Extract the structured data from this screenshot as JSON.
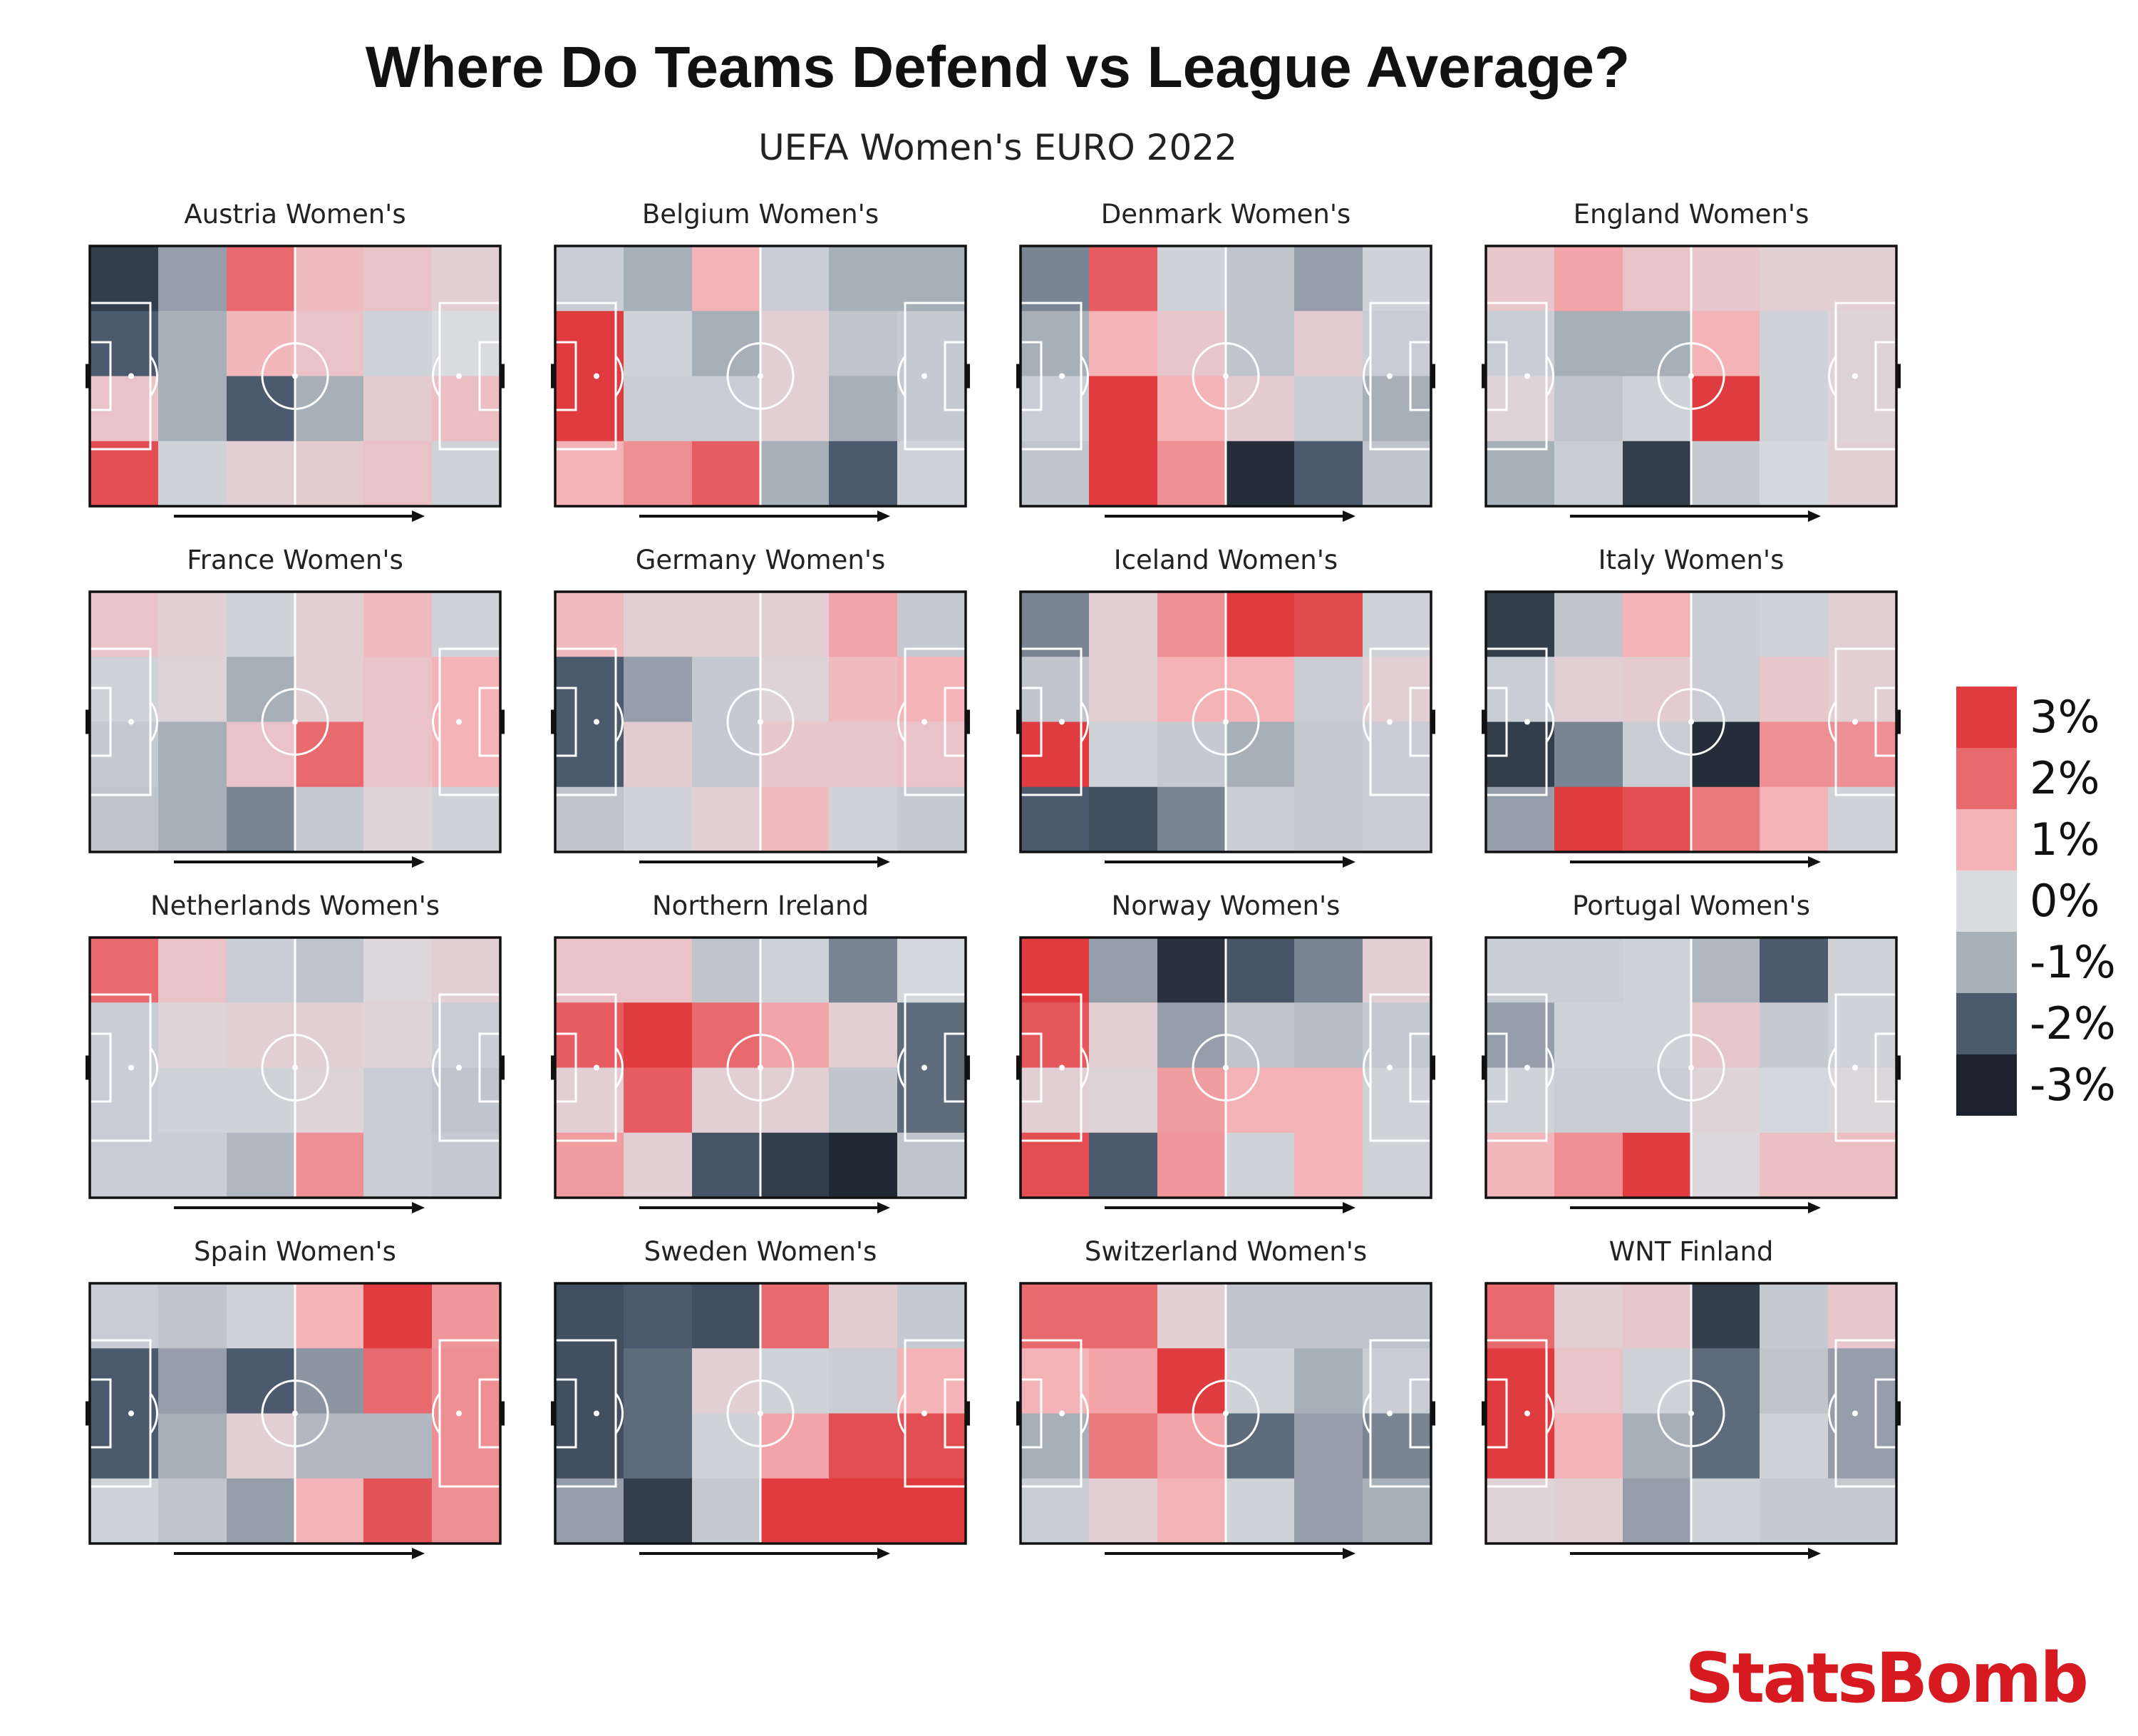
{
  "title": "Where Do Teams Defend vs League Average?",
  "subtitle": "UEFA Women's EURO 2022",
  "brand": "StatsBomb",
  "colors": {
    "scale": [
      "#1b222d",
      "#4b5a6c",
      "#a7afb9",
      "#d9dbdf",
      "#f4b3b7",
      "#e86a6f",
      "#e03c40"
    ],
    "line": "#ffffff",
    "border": "#111111"
  },
  "legend": {
    "labels": [
      "3%",
      "2%",
      "1%",
      "0%",
      "-1%",
      "-2%",
      "-3%"
    ],
    "colors": [
      "#e03c40",
      "#e86a6f",
      "#f4b3b7",
      "#d9dbdf",
      "#a7afb9",
      "#4b5a6c",
      "#1b222d"
    ]
  },
  "chart_data": {
    "type": "heatmap",
    "description_units": "difference vs league average share of defensive actions (%)",
    "grid": {
      "columns": 6,
      "rows": 4
    },
    "range": [
      -3,
      3
    ],
    "attack_direction": "left-to-right",
    "teams": [
      {
        "name": "Austria Women's",
        "values": [
          [
            -2.5,
            -1.2,
            2.0,
            0.8,
            0.6,
            0.3
          ],
          [
            -2.0,
            -1.0,
            0.9,
            0.6,
            -0.2,
            0.0
          ],
          [
            0.6,
            -1.0,
            -2.0,
            -1.0,
            0.4,
            0.7
          ],
          [
            2.6,
            -0.2,
            0.3,
            0.4,
            0.6,
            -0.2
          ]
        ]
      },
      {
        "name": "Belgium Women's",
        "values": [
          [
            -0.3,
            -1.0,
            1.0,
            -0.3,
            -1.0,
            -1.0
          ],
          [
            3.0,
            -0.2,
            -1.0,
            0.3,
            -0.5,
            -0.4
          ],
          [
            3.0,
            -0.3,
            -0.3,
            0.3,
            -1.0,
            -0.4
          ],
          [
            1.0,
            1.5,
            2.3,
            -1.0,
            -2.0,
            -0.2
          ]
        ]
      },
      {
        "name": "Denmark Women's",
        "values": [
          [
            -1.5,
            2.3,
            -0.2,
            -0.5,
            -1.2,
            -0.2
          ],
          [
            -1.0,
            1.0,
            0.5,
            -0.5,
            0.4,
            -0.3
          ],
          [
            -0.3,
            3.0,
            1.0,
            0.4,
            -0.3,
            -1.0
          ],
          [
            -0.5,
            3.0,
            1.5,
            -2.8,
            -2.0,
            -0.5
          ]
        ]
      },
      {
        "name": "England Women's",
        "values": [
          [
            0.5,
            1.2,
            0.6,
            0.5,
            0.3,
            0.3
          ],
          [
            -0.3,
            -1.0,
            -1.0,
            1.0,
            -0.2,
            0.2
          ],
          [
            0.2,
            -0.5,
            -0.2,
            3.0,
            -0.2,
            0.2
          ],
          [
            -1.0,
            -0.3,
            -2.5,
            -0.4,
            -0.1,
            0.3
          ]
        ]
      },
      {
        "name": "France Women's",
        "values": [
          [
            0.6,
            0.3,
            -0.2,
            0.3,
            0.8,
            -0.2
          ],
          [
            -0.2,
            0.2,
            -1.0,
            0.3,
            0.6,
            1.0
          ],
          [
            -0.4,
            -1.0,
            0.6,
            2.0,
            0.6,
            1.0
          ],
          [
            -0.5,
            -1.0,
            -1.5,
            -0.4,
            0.2,
            -0.2
          ]
        ]
      },
      {
        "name": "Germany Women's",
        "values": [
          [
            0.8,
            0.3,
            0.3,
            0.3,
            1.2,
            -0.4
          ],
          [
            -2.0,
            -1.2,
            -0.4,
            0.2,
            0.8,
            1.0
          ],
          [
            -2.0,
            0.4,
            -0.4,
            0.5,
            0.5,
            0.6
          ],
          [
            -0.5,
            -0.2,
            0.3,
            0.8,
            -0.2,
            -0.4
          ]
        ]
      },
      {
        "name": "Iceland Women's",
        "values": [
          [
            -1.5,
            0.3,
            1.5,
            3.0,
            2.7,
            -0.2
          ],
          [
            -0.5,
            0.3,
            1.0,
            1.0,
            -0.3,
            0.3
          ],
          [
            3.0,
            -0.2,
            -0.4,
            -1.0,
            -0.4,
            -0.3
          ],
          [
            -2.0,
            -2.2,
            -1.5,
            -0.3,
            -0.4,
            -0.3
          ]
        ]
      },
      {
        "name": "Italy Women's",
        "values": [
          [
            -2.5,
            -0.5,
            1.0,
            -0.3,
            -0.2,
            0.3
          ],
          [
            -0.3,
            0.3,
            0.4,
            -0.3,
            0.5,
            0.3
          ],
          [
            -2.5,
            -1.5,
            -0.3,
            -2.8,
            1.5,
            1.5
          ],
          [
            -1.2,
            3.0,
            2.6,
            1.8,
            1.0,
            -0.2
          ]
        ]
      },
      {
        "name": "Netherlands Women's",
        "values": [
          [
            2.0,
            0.6,
            -0.3,
            -0.5,
            0.1,
            0.3
          ],
          [
            -0.3,
            0.2,
            0.3,
            0.3,
            0.2,
            -0.3
          ],
          [
            -0.3,
            -0.2,
            -0.2,
            0.2,
            -0.3,
            -0.5
          ],
          [
            -0.3,
            -0.3,
            -0.8,
            1.5,
            -0.3,
            -0.4
          ]
        ]
      },
      {
        "name": "Northern Ireland",
        "values": [
          [
            0.6,
            0.6,
            -0.5,
            -0.2,
            -1.5,
            -0.1
          ],
          [
            2.3,
            3.0,
            2.0,
            1.2,
            0.3,
            -1.8
          ],
          [
            0.3,
            2.3,
            0.3,
            0.3,
            -0.5,
            -1.8
          ],
          [
            1.3,
            0.3,
            -2.1,
            -2.5,
            -2.9,
            -0.5
          ]
        ]
      },
      {
        "name": "Norway Women's",
        "values": [
          [
            3.0,
            -1.2,
            -2.7,
            -2.1,
            -1.5,
            0.3
          ],
          [
            2.4,
            0.3,
            -1.2,
            -0.5,
            -0.7,
            -0.4
          ],
          [
            0.3,
            0.2,
            1.3,
            1.0,
            1.0,
            -0.2
          ],
          [
            2.6,
            -2.0,
            1.4,
            -0.2,
            1.0,
            -0.2
          ]
        ]
      },
      {
        "name": "Portugal Women's",
        "values": [
          [
            -0.3,
            -0.3,
            -0.2,
            -0.8,
            -2.0,
            -0.2
          ],
          [
            -1.2,
            -0.2,
            -0.2,
            0.5,
            -0.4,
            -0.2
          ],
          [
            -0.2,
            -0.3,
            -0.3,
            0.2,
            -0.1,
            0.1
          ],
          [
            0.9,
            1.5,
            3.0,
            0.1,
            0.7,
            0.7
          ]
        ]
      },
      {
        "name": "Spain Women's",
        "values": [
          [
            -0.3,
            -0.5,
            -0.2,
            1.0,
            3.0,
            1.4
          ],
          [
            -2.0,
            -1.2,
            -2.0,
            -1.3,
            2.0,
            1.5
          ],
          [
            -2.0,
            -1.0,
            0.3,
            -0.8,
            -0.8,
            1.5
          ],
          [
            -0.2,
            -0.5,
            -1.2,
            1.0,
            2.5,
            1.5
          ]
        ]
      },
      {
        "name": "Sweden Women's",
        "values": [
          [
            -2.2,
            -2.0,
            -2.2,
            2.0,
            0.4,
            -0.4
          ],
          [
            -2.2,
            -1.8,
            0.3,
            -0.2,
            -0.3,
            1.0
          ],
          [
            -2.2,
            -1.8,
            -0.2,
            1.2,
            2.6,
            2.6
          ],
          [
            -1.2,
            -2.5,
            -0.4,
            3.0,
            3.0,
            3.0
          ]
        ]
      },
      {
        "name": "Switzerland Women's",
        "values": [
          [
            2.0,
            2.0,
            0.3,
            -0.5,
            -0.5,
            -0.5
          ],
          [
            1.0,
            1.2,
            3.0,
            -0.2,
            -1.0,
            -0.3
          ],
          [
            -1.0,
            1.8,
            1.2,
            -1.8,
            -1.2,
            -1.5
          ],
          [
            -0.3,
            0.3,
            1.0,
            -0.2,
            -1.2,
            -1.0
          ]
        ]
      },
      {
        "name": "WNT Finland",
        "values": [
          [
            2.0,
            0.3,
            0.5,
            -2.5,
            -0.4,
            0.5
          ],
          [
            3.0,
            0.6,
            -0.2,
            -1.8,
            -0.5,
            -1.2
          ],
          [
            3.0,
            1.0,
            -1.0,
            -1.8,
            -0.2,
            -1.2
          ],
          [
            0.2,
            0.3,
            -1.2,
            -0.2,
            -0.4,
            -0.4
          ]
        ]
      }
    ]
  }
}
